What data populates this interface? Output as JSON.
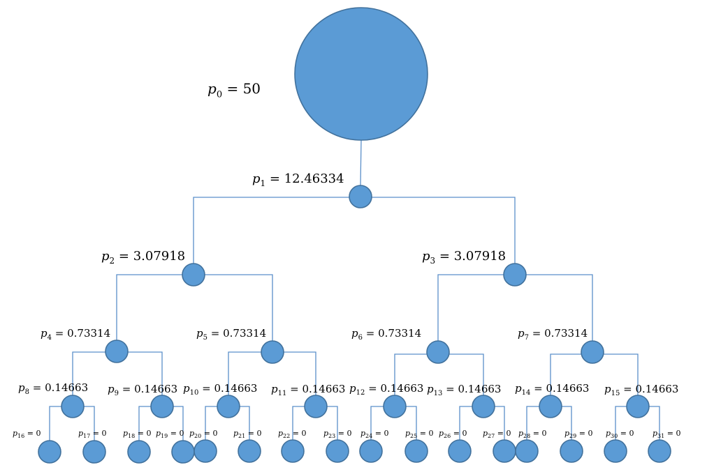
{
  "tree": {
    "nodes": [
      {
        "id": 0,
        "name": "p",
        "sub": "0",
        "value": "50"
      },
      {
        "id": 1,
        "name": "p",
        "sub": "1",
        "value": "12.46334"
      },
      {
        "id": 2,
        "name": "p",
        "sub": "2",
        "value": "3.07918"
      },
      {
        "id": 3,
        "name": "p",
        "sub": "3",
        "value": "3.07918"
      },
      {
        "id": 4,
        "name": "p",
        "sub": "4",
        "value": "0.73314"
      },
      {
        "id": 5,
        "name": "p",
        "sub": "5",
        "value": "0.73314"
      },
      {
        "id": 6,
        "name": "p",
        "sub": "6",
        "value": "0.73314"
      },
      {
        "id": 7,
        "name": "p",
        "sub": "7",
        "value": "0.73314"
      },
      {
        "id": 8,
        "name": "p",
        "sub": "8",
        "value": "0.14663"
      },
      {
        "id": 9,
        "name": "p",
        "sub": "9",
        "value": "0.14663"
      },
      {
        "id": 10,
        "name": "p",
        "sub": "10",
        "value": "0.14663"
      },
      {
        "id": 11,
        "name": "p",
        "sub": "11",
        "value": "0.14663"
      },
      {
        "id": 12,
        "name": "p",
        "sub": "12",
        "value": "0.14663"
      },
      {
        "id": 13,
        "name": "p",
        "sub": "13",
        "value": "0.14663"
      },
      {
        "id": 14,
        "name": "p",
        "sub": "14",
        "value": "0.14663"
      },
      {
        "id": 15,
        "name": "p",
        "sub": "15",
        "value": "0.14663"
      },
      {
        "id": 16,
        "name": "p",
        "sub": "16",
        "value": "0"
      },
      {
        "id": 17,
        "name": "p",
        "sub": "17",
        "value": "0"
      },
      {
        "id": 18,
        "name": "p",
        "sub": "18",
        "value": "0"
      },
      {
        "id": 19,
        "name": "p",
        "sub": "19",
        "value": "0"
      },
      {
        "id": 20,
        "name": "p",
        "sub": "20",
        "value": "0"
      },
      {
        "id": 21,
        "name": "p",
        "sub": "21",
        "value": "0"
      },
      {
        "id": 22,
        "name": "p",
        "sub": "22",
        "value": "0"
      },
      {
        "id": 23,
        "name": "p",
        "sub": "23",
        "value": "0"
      },
      {
        "id": 24,
        "name": "p",
        "sub": "24",
        "value": "0"
      },
      {
        "id": 25,
        "name": "p",
        "sub": "25",
        "value": "0"
      },
      {
        "id": 26,
        "name": "p",
        "sub": "26",
        "value": "0"
      },
      {
        "id": 27,
        "name": "p",
        "sub": "27",
        "value": "0"
      },
      {
        "id": 28,
        "name": "p",
        "sub": "28",
        "value": "0"
      },
      {
        "id": 29,
        "name": "p",
        "sub": "29",
        "value": "0"
      },
      {
        "id": 30,
        "name": "p",
        "sub": "30",
        "value": "0"
      },
      {
        "id": 31,
        "name": "p",
        "sub": "31",
        "value": "0"
      }
    ]
  },
  "colors": {
    "node_fill": "#5b9bd5",
    "node_stroke": "#41719c",
    "edge": "#5b8fc9"
  }
}
